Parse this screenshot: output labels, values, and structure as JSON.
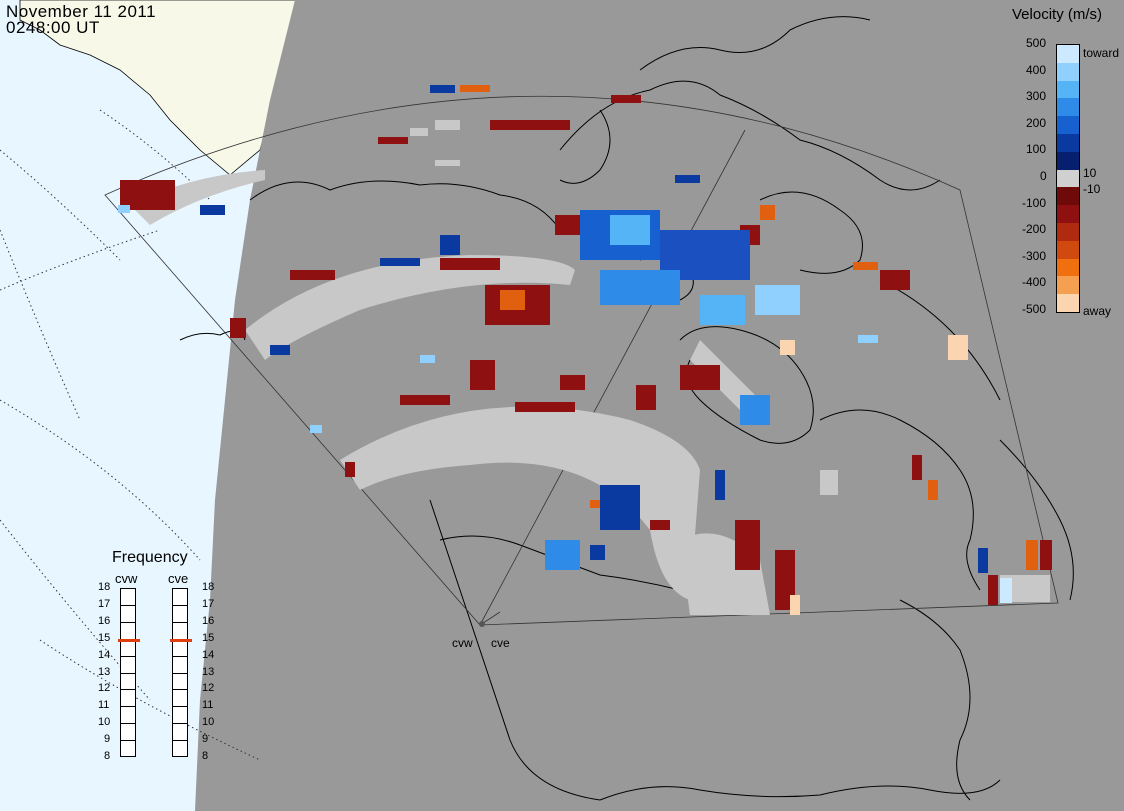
{
  "header": {
    "date": "November 11 2011",
    "time": "0248:00 UT"
  },
  "legend": {
    "title": "Velocity (m/s)",
    "ticks": [
      "500",
      "400",
      "300",
      "200",
      "100",
      "0",
      "-100",
      "-200",
      "-300",
      "-400",
      "-500"
    ],
    "extra_ticks": [
      "10",
      "-10"
    ],
    "toward_label": "toward",
    "away_label": "away",
    "colors": [
      "#cce9ff",
      "#8fd0ff",
      "#55b4f5",
      "#2e8ce8",
      "#1660d0",
      "#0a3aa0",
      "#061f6e",
      "#d0d0d0",
      "#6e0a0a",
      "#8e1010",
      "#b02a10",
      "#d04a10",
      "#f07010",
      "#f5a050",
      "#fbd5b0"
    ]
  },
  "frequency": {
    "title": "Frequency",
    "radars": [
      "cvw",
      "cve"
    ],
    "scale": [
      "18",
      "17",
      "16",
      "15",
      "14",
      "13",
      "12",
      "11",
      "10",
      "9",
      "8"
    ],
    "values_mhz": {
      "cvw": 14.9,
      "cve": 14.9
    }
  },
  "radars": {
    "west_label": "cvw",
    "east_label": "cve"
  },
  "colors": {
    "land": "#999999",
    "ocean": "#e8f6ff",
    "ground_scatter": "#c8c8c8",
    "daylight_land": "#f8f8e8"
  }
}
